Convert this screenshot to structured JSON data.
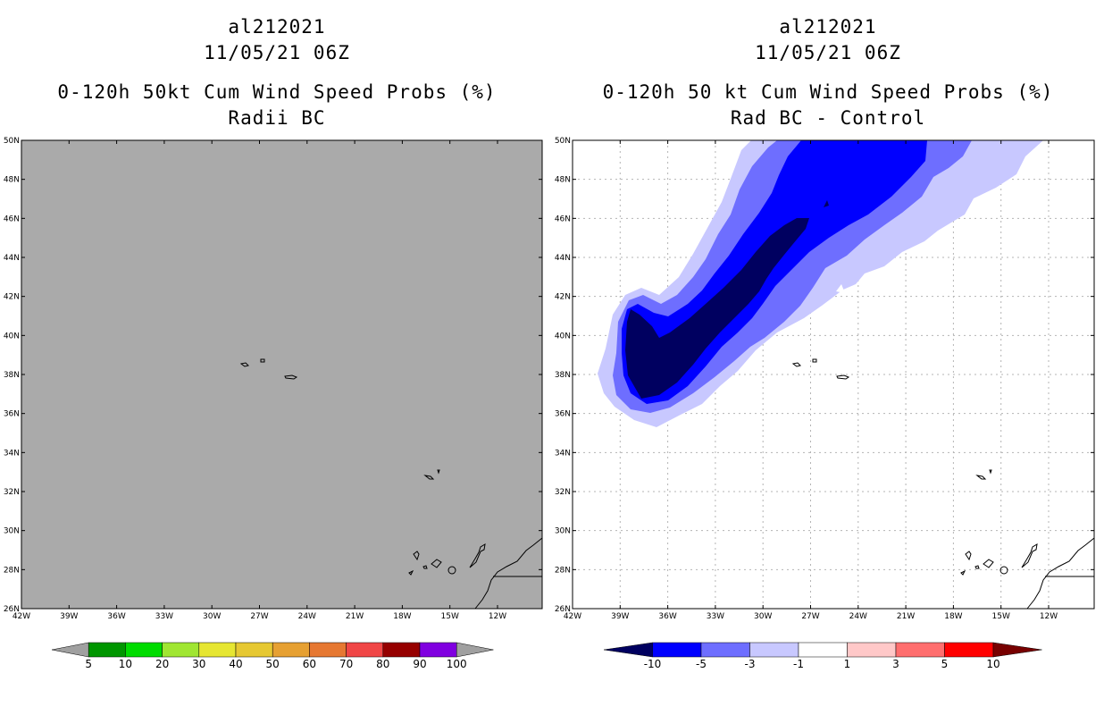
{
  "left_panel": {
    "storm_id": "al212021",
    "datetime": "11/05/21 06Z",
    "title": "0-120h 50kt Cum Wind Speed Probs (%)",
    "subtitle": "Radii BC",
    "background_color": "#aaaaaa",
    "lat_labels": [
      "50N",
      "48N",
      "46N",
      "44N",
      "42N",
      "40N",
      "38N",
      "36N",
      "34N",
      "32N",
      "30N",
      "28N",
      "26N"
    ],
    "lon_labels": [
      "42W",
      "39W",
      "36W",
      "33W",
      "30W",
      "27W",
      "24W",
      "21W",
      "18W",
      "15W",
      "12W"
    ],
    "colorbar": {
      "colors": [
        "#a0a0a0",
        "#009600",
        "#00dc00",
        "#a0e632",
        "#e6e632",
        "#e6c832",
        "#e6a032",
        "#e67832",
        "#f04646",
        "#960000",
        "#8000e0",
        "#a0a0a0"
      ],
      "labels": [
        "5",
        "10",
        "20",
        "30",
        "40",
        "50",
        "60",
        "70",
        "80",
        "90",
        "100"
      ]
    }
  },
  "right_panel": {
    "storm_id": "al212021",
    "datetime": "11/05/21 06Z",
    "title": "0-120h 50 kt Cum Wind Speed Probs (%)",
    "subtitle": "Rad BC - Control",
    "lat_labels": [
      "50N",
      "48N",
      "46N",
      "44N",
      "42N",
      "40N",
      "38N",
      "36N",
      "34N",
      "32N",
      "30N",
      "28N",
      "26N"
    ],
    "lon_labels": [
      "42W",
      "39W",
      "36W",
      "33W",
      "30W",
      "27W",
      "24W",
      "21W",
      "18W",
      "15W",
      "12W"
    ],
    "colorbar": {
      "colors": [
        "#000060",
        "#0000ff",
        "#6e6eff",
        "#c8c8ff",
        "#ffffff",
        "#ffc8c8",
        "#ff6e6e",
        "#ff0000",
        "#780000"
      ],
      "labels": [
        "-10",
        "-5",
        "-3",
        "-1",
        "1",
        "3",
        "5",
        "10"
      ]
    },
    "contour_colors": {
      "light": "#c8c8ff",
      "medium": "#6e6eff",
      "strong": "#0000ff",
      "darkest": "#000060"
    }
  }
}
